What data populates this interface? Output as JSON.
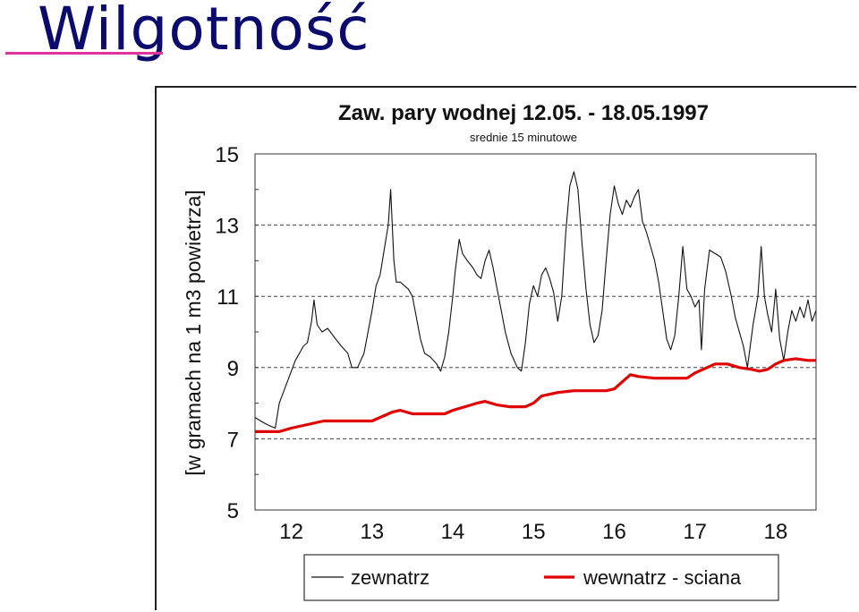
{
  "slide": {
    "title": "Wilgotność"
  },
  "colors": {
    "title": "#0b0b6e",
    "underline": "#e0339b",
    "outside": "#111111",
    "inside": "#e00000",
    "grid": "#444444"
  },
  "chart_data": {
    "type": "line",
    "title": "Zaw. pary wodnej  12.05. - 18.05.1997",
    "subtitle": "srednie 15 minutowe",
    "ylabel": "[w gramach na 1 m3 powietrza]",
    "xlabel": "",
    "xlim": [
      11.55,
      18.5
    ],
    "ylim": [
      5,
      15
    ],
    "x_ticks": [
      "12",
      "13",
      "14",
      "15",
      "16",
      "17",
      "18"
    ],
    "y_ticks": [
      "5",
      "7",
      "9",
      "11",
      "13",
      "15"
    ],
    "grid": "dashed horizontal at 7, 9, 11, 13",
    "legend_position": "bottom",
    "series": [
      {
        "name": "zewnatrz",
        "color": "#111111",
        "points": [
          [
            11.55,
            7.6
          ],
          [
            11.62,
            7.5
          ],
          [
            11.7,
            7.4
          ],
          [
            11.8,
            7.3
          ],
          [
            11.85,
            8.0
          ],
          [
            11.95,
            8.6
          ],
          [
            12.05,
            9.2
          ],
          [
            12.15,
            9.6
          ],
          [
            12.2,
            9.7
          ],
          [
            12.25,
            10.3
          ],
          [
            12.28,
            10.9
          ],
          [
            12.32,
            10.2
          ],
          [
            12.38,
            10.0
          ],
          [
            12.45,
            10.1
          ],
          [
            12.55,
            9.8
          ],
          [
            12.62,
            9.6
          ],
          [
            12.7,
            9.4
          ],
          [
            12.75,
            9.0
          ],
          [
            12.82,
            9.0
          ],
          [
            12.9,
            9.4
          ],
          [
            13.0,
            10.6
          ],
          [
            13.05,
            11.3
          ],
          [
            13.1,
            11.6
          ],
          [
            13.15,
            12.3
          ],
          [
            13.2,
            13.0
          ],
          [
            13.23,
            14.0
          ],
          [
            13.27,
            12.0
          ],
          [
            13.3,
            11.4
          ],
          [
            13.35,
            11.4
          ],
          [
            13.45,
            11.2
          ],
          [
            13.5,
            11.0
          ],
          [
            13.55,
            10.4
          ],
          [
            13.6,
            9.8
          ],
          [
            13.65,
            9.4
          ],
          [
            13.72,
            9.3
          ],
          [
            13.8,
            9.1
          ],
          [
            13.85,
            8.9
          ],
          [
            13.9,
            9.3
          ],
          [
            13.95,
            10.0
          ],
          [
            14.0,
            11.0
          ],
          [
            14.03,
            11.7
          ],
          [
            14.08,
            12.6
          ],
          [
            14.12,
            12.2
          ],
          [
            14.18,
            12.0
          ],
          [
            14.25,
            11.8
          ],
          [
            14.3,
            11.6
          ],
          [
            14.35,
            11.5
          ],
          [
            14.4,
            12.0
          ],
          [
            14.45,
            12.3
          ],
          [
            14.5,
            11.8
          ],
          [
            14.55,
            11.2
          ],
          [
            14.6,
            10.6
          ],
          [
            14.65,
            10.0
          ],
          [
            14.72,
            9.4
          ],
          [
            14.8,
            9.0
          ],
          [
            14.85,
            8.9
          ],
          [
            14.9,
            9.7
          ],
          [
            14.95,
            10.8
          ],
          [
            15.0,
            11.3
          ],
          [
            15.05,
            11.0
          ],
          [
            15.1,
            11.6
          ],
          [
            15.15,
            11.8
          ],
          [
            15.2,
            11.5
          ],
          [
            15.25,
            11.1
          ],
          [
            15.3,
            10.3
          ],
          [
            15.35,
            11.0
          ],
          [
            15.4,
            12.8
          ],
          [
            15.45,
            14.1
          ],
          [
            15.5,
            14.5
          ],
          [
            15.55,
            14.0
          ],
          [
            15.6,
            12.5
          ],
          [
            15.65,
            11.2
          ],
          [
            15.7,
            10.2
          ],
          [
            15.75,
            9.7
          ],
          [
            15.8,
            9.9
          ],
          [
            15.85,
            10.6
          ],
          [
            15.9,
            12.0
          ],
          [
            15.95,
            13.3
          ],
          [
            16.0,
            14.1
          ],
          [
            16.05,
            13.6
          ],
          [
            16.1,
            13.3
          ],
          [
            16.15,
            13.7
          ],
          [
            16.2,
            13.5
          ],
          [
            16.25,
            13.8
          ],
          [
            16.3,
            14.0
          ],
          [
            16.35,
            13.1
          ],
          [
            16.4,
            12.8
          ],
          [
            16.45,
            12.4
          ],
          [
            16.5,
            12.0
          ],
          [
            16.55,
            11.4
          ],
          [
            16.6,
            10.6
          ],
          [
            16.65,
            9.8
          ],
          [
            16.7,
            9.5
          ],
          [
            16.75,
            9.9
          ],
          [
            16.8,
            11.0
          ],
          [
            16.85,
            12.4
          ],
          [
            16.9,
            11.2
          ],
          [
            16.95,
            11.0
          ],
          [
            17.0,
            10.7
          ],
          [
            17.05,
            10.9
          ],
          [
            17.08,
            9.5
          ],
          [
            17.12,
            11.2
          ],
          [
            17.18,
            12.3
          ],
          [
            17.25,
            12.2
          ],
          [
            17.32,
            12.1
          ],
          [
            17.38,
            11.7
          ],
          [
            17.45,
            11.0
          ],
          [
            17.5,
            10.4
          ],
          [
            17.55,
            10.0
          ],
          [
            17.6,
            9.6
          ],
          [
            17.65,
            9.0
          ],
          [
            17.72,
            10.2
          ],
          [
            17.78,
            11.0
          ],
          [
            17.82,
            12.4
          ],
          [
            17.86,
            11.0
          ],
          [
            17.9,
            10.5
          ],
          [
            17.95,
            10.0
          ],
          [
            18.0,
            11.2
          ],
          [
            18.05,
            9.8
          ],
          [
            18.1,
            9.2
          ],
          [
            18.15,
            10.0
          ],
          [
            18.2,
            10.6
          ],
          [
            18.25,
            10.3
          ],
          [
            18.3,
            10.7
          ],
          [
            18.35,
            10.4
          ],
          [
            18.4,
            10.9
          ],
          [
            18.45,
            10.3
          ],
          [
            18.5,
            10.6
          ]
        ]
      },
      {
        "name": "wewnatrz - sciana",
        "color": "#e00000",
        "points": [
          [
            11.55,
            7.2
          ],
          [
            11.7,
            7.2
          ],
          [
            11.85,
            7.2
          ],
          [
            12.0,
            7.3
          ],
          [
            12.2,
            7.4
          ],
          [
            12.4,
            7.5
          ],
          [
            12.6,
            7.5
          ],
          [
            12.85,
            7.5
          ],
          [
            13.0,
            7.5
          ],
          [
            13.1,
            7.6
          ],
          [
            13.25,
            7.75
          ],
          [
            13.35,
            7.8
          ],
          [
            13.5,
            7.7
          ],
          [
            13.7,
            7.7
          ],
          [
            13.9,
            7.7
          ],
          [
            14.0,
            7.8
          ],
          [
            14.15,
            7.9
          ],
          [
            14.3,
            8.0
          ],
          [
            14.4,
            8.05
          ],
          [
            14.55,
            7.95
          ],
          [
            14.7,
            7.9
          ],
          [
            14.9,
            7.9
          ],
          [
            15.0,
            8.0
          ],
          [
            15.1,
            8.2
          ],
          [
            15.3,
            8.3
          ],
          [
            15.5,
            8.35
          ],
          [
            15.7,
            8.35
          ],
          [
            15.9,
            8.35
          ],
          [
            16.0,
            8.4
          ],
          [
            16.1,
            8.6
          ],
          [
            16.2,
            8.8
          ],
          [
            16.3,
            8.75
          ],
          [
            16.5,
            8.7
          ],
          [
            16.7,
            8.7
          ],
          [
            16.9,
            8.7
          ],
          [
            17.0,
            8.85
          ],
          [
            17.15,
            9.0
          ],
          [
            17.25,
            9.1
          ],
          [
            17.4,
            9.1
          ],
          [
            17.55,
            9.0
          ],
          [
            17.7,
            8.95
          ],
          [
            17.8,
            8.9
          ],
          [
            17.9,
            8.95
          ],
          [
            18.0,
            9.1
          ],
          [
            18.1,
            9.2
          ],
          [
            18.25,
            9.25
          ],
          [
            18.4,
            9.2
          ],
          [
            18.5,
            9.2
          ]
        ]
      }
    ]
  }
}
